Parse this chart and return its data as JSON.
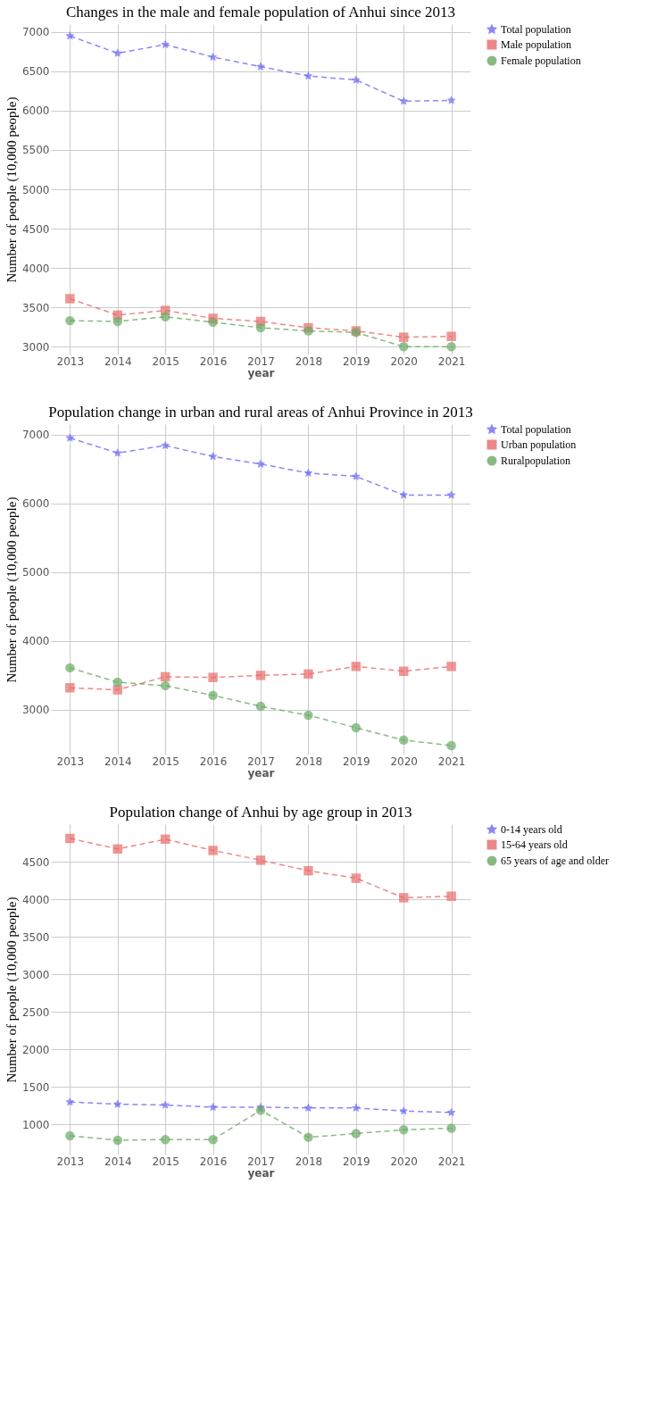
{
  "chart_data": [
    {
      "type": "line",
      "title": "Changes in the male and female population of Anhui since 2013",
      "xlabel": "year",
      "ylabel": "Number of people (10,000 people)",
      "categories": [
        "2013",
        "2014",
        "2015",
        "2016",
        "2017",
        "2018",
        "2019",
        "2020",
        "2021"
      ],
      "series": [
        {
          "name": "Total population",
          "color": "#6b6bf5",
          "marker": "star",
          "values": [
            6950,
            6730,
            6840,
            6680,
            6560,
            6440,
            6390,
            6120,
            6130
          ]
        },
        {
          "name": "Male population",
          "color": "#e86a6a",
          "marker": "square",
          "values": [
            3610,
            3400,
            3460,
            3360,
            3320,
            3240,
            3200,
            3120,
            3130
          ]
        },
        {
          "name": "Female population",
          "color": "#6aaa64",
          "marker": "circle",
          "values": [
            3330,
            3320,
            3380,
            3310,
            3240,
            3200,
            3180,
            3000,
            3000
          ]
        }
      ],
      "ylim": [
        2900,
        7100
      ],
      "yticks": [
        3000,
        3500,
        4000,
        4500,
        5000,
        5500,
        6000,
        6500,
        7000
      ],
      "grid": true,
      "legend": "right",
      "line_style": "dashed"
    },
    {
      "type": "line",
      "title": "Population change in urban and rural areas of Anhui Province in 2013",
      "xlabel": "year",
      "ylabel": "Number of people (10,000 people)",
      "categories": [
        "2013",
        "2014",
        "2015",
        "2016",
        "2017",
        "2018",
        "2019",
        "2020",
        "2021"
      ],
      "series": [
        {
          "name": "Total population",
          "color": "#6b6bf5",
          "marker": "star",
          "values": [
            6950,
            6730,
            6840,
            6680,
            6570,
            6440,
            6390,
            6120,
            6120
          ]
        },
        {
          "name": "Urban population",
          "color": "#e86a6a",
          "marker": "square",
          "values": [
            3320,
            3290,
            3480,
            3470,
            3500,
            3520,
            3630,
            3560,
            3630
          ]
        },
        {
          "name": "Ruralpopulation",
          "color": "#6aaa64",
          "marker": "circle",
          "values": [
            3610,
            3400,
            3350,
            3210,
            3050,
            2920,
            2740,
            2560,
            2480
          ]
        }
      ],
      "ylim": [
        2350,
        7150
      ],
      "yticks": [
        3000,
        4000,
        5000,
        6000,
        7000
      ],
      "grid": true,
      "legend": "right",
      "line_style": "dashed"
    },
    {
      "type": "line",
      "title": "Population change of Anhui by age group in 2013",
      "xlabel": "year",
      "ylabel": "Number of people (10,000 people)",
      "categories": [
        "2013",
        "2014",
        "2015",
        "2016",
        "2017",
        "2018",
        "2019",
        "2020",
        "2021"
      ],
      "series": [
        {
          "name": "0-14 years old",
          "color": "#6b6bf5",
          "marker": "star",
          "values": [
            1300,
            1270,
            1260,
            1230,
            1230,
            1220,
            1220,
            1180,
            1160
          ]
        },
        {
          "name": "15-64 years old",
          "color": "#e86a6a",
          "marker": "square",
          "values": [
            4810,
            4670,
            4800,
            4650,
            4520,
            4380,
            4280,
            4020,
            4040
          ]
        },
        {
          "name": "65 years of age and older",
          "color": "#6aaa64",
          "marker": "circle",
          "values": [
            850,
            790,
            800,
            800,
            1190,
            830,
            880,
            930,
            950
          ]
        }
      ],
      "ylim": [
        600,
        5000
      ],
      "yticks": [
        1000,
        1500,
        2000,
        2500,
        3000,
        3500,
        4000,
        4500
      ],
      "grid": true,
      "legend": "right",
      "line_style": "dashed"
    }
  ]
}
